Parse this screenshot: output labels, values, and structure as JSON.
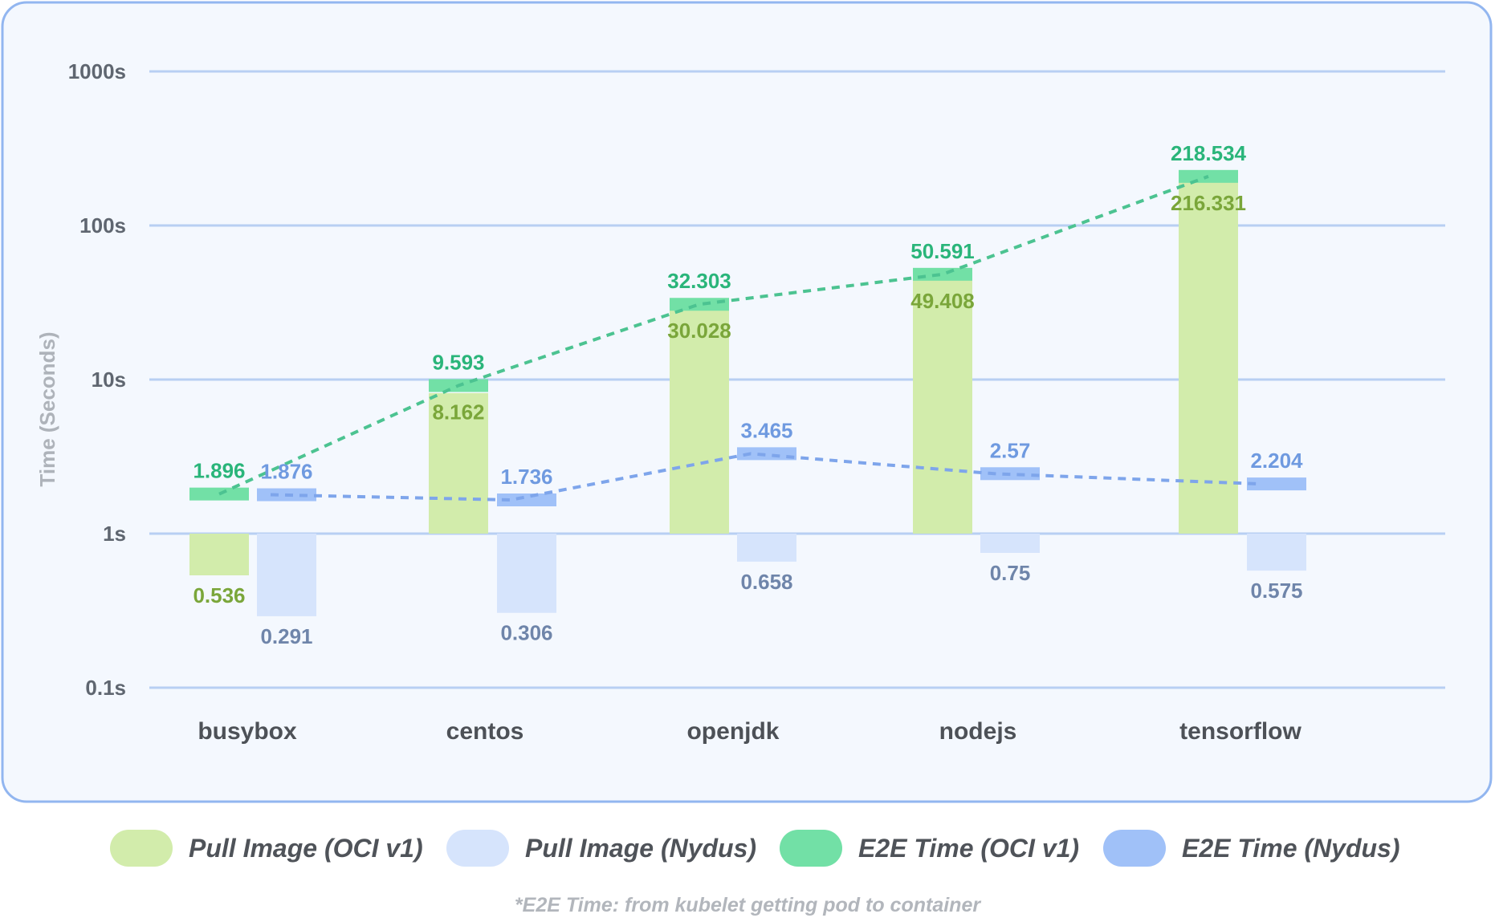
{
  "chart_data": {
    "type": "bar",
    "ylabel": "Time (Seconds)",
    "yscale": "log",
    "ylim": [
      0.1,
      1000
    ],
    "yticks": [
      {
        "value": 0.1,
        "label": "0.1s"
      },
      {
        "value": 1,
        "label": "1s"
      },
      {
        "value": 10,
        "label": "10s"
      },
      {
        "value": 100,
        "label": "100s"
      },
      {
        "value": 1000,
        "label": "1000s"
      }
    ],
    "grid": true,
    "legend_position": "bottom",
    "categories": [
      "busybox",
      "centos",
      "openjdk",
      "nodejs",
      "tensorflow"
    ],
    "series": [
      {
        "name": "Pull Image (OCI v1)",
        "color": "#d2ecab",
        "label_color": "#7aa63a",
        "values": [
          0.536,
          8.162,
          30.028,
          49.408,
          216.331
        ]
      },
      {
        "name": "Pull Image (Nydus)",
        "color": "#d6e4fc",
        "label_color": "#6f85aa",
        "values": [
          0.291,
          0.306,
          0.658,
          0.75,
          0.575
        ]
      },
      {
        "name": "E2E Time (OCI v1)",
        "color": "#72e0a6",
        "label_color": "#2ab57a",
        "line_color": "#4cc391",
        "values": [
          1.896,
          9.593,
          32.303,
          50.591,
          218.534
        ]
      },
      {
        "name": "E2E Time (Nydus)",
        "color": "#a0c1f8",
        "label_color": "#6f9ae0",
        "line_color": "#7ea5eb",
        "values": [
          1.876,
          1.736,
          3.465,
          2.57,
          2.204
        ]
      }
    ],
    "footnote": "*E2E Time: from kubelet getting pod to container",
    "panel_background": "#f4f8fe",
    "panel_border": "#92b6f0",
    "grid_color": "#b8cff3"
  }
}
